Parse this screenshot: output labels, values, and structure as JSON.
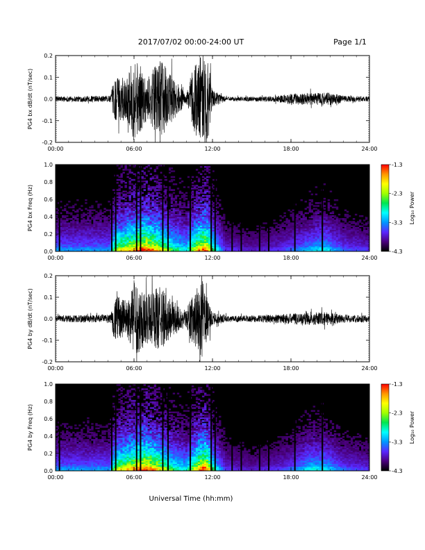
{
  "header": {
    "title": "2017/07/02  00:00-24:00 UT",
    "page": "Page 1/1"
  },
  "xaxis_title": "Universal Time (hh:mm)",
  "colors": {
    "trace": "#000000",
    "spectrogram_background": "#000000",
    "colorbar": [
      "#000000",
      "#4b007d",
      "#5a28ff",
      "#0096ff",
      "#00ffff",
      "#00e650",
      "#a0ff00",
      "#ffff00",
      "#ff9600",
      "#ff0000"
    ]
  },
  "chart_data": [
    {
      "type": "line",
      "ylabel": "PG4 bx dB/dt (nT/sec)",
      "x_ticks": [
        "00:00",
        "06:00",
        "12:00",
        "18:00",
        "24:00"
      ],
      "x_range_hours": [
        0,
        24
      ],
      "y_ticks": [
        "0.2",
        "0.1",
        "0.0",
        "-0.1",
        "-0.2"
      ],
      "ylim": [
        -0.2,
        0.2
      ],
      "grid": false,
      "activity": [
        [
          0,
          0.012
        ],
        [
          4.2,
          0.015
        ],
        [
          4.5,
          0.1
        ],
        [
          5.5,
          0.1
        ],
        [
          6,
          0.2
        ],
        [
          7,
          0.1
        ],
        [
          8,
          0.18
        ],
        [
          9,
          0.1
        ],
        [
          10,
          0.02
        ],
        [
          10.5,
          0.15
        ],
        [
          11.5,
          0.25
        ],
        [
          12,
          0.04
        ],
        [
          13,
          0.01
        ],
        [
          15,
          0.01
        ],
        [
          17,
          0.015
        ],
        [
          18,
          0.025
        ],
        [
          20,
          0.03
        ],
        [
          21,
          0.03
        ],
        [
          22,
          0.015
        ],
        [
          24,
          0.012
        ]
      ]
    },
    {
      "type": "heatmap",
      "ylabel": "PG4 bx Freq (Hz)",
      "x_ticks": [
        "00:00",
        "06:00",
        "12:00",
        "18:00",
        "24:00"
      ],
      "x_range_hours": [
        0,
        24
      ],
      "y_ticks": [
        "1.0",
        "0.8",
        "0.6",
        "0.4",
        "0.2",
        "0.0"
      ],
      "ylim": [
        0,
        1.0
      ],
      "colorbar": {
        "label": "Log₁₀ Power",
        "ticks": [
          "-1.3",
          "-2.3",
          "-3.3",
          "-4.3"
        ],
        "range": [
          -4.3,
          -1.3
        ]
      },
      "vertical_lines_hours": [
        0.3,
        4.3,
        4.6,
        6.2,
        6.5,
        8.2,
        8.6,
        10.3,
        11.9,
        12.2,
        13.5,
        14.2,
        15.6,
        16.3,
        18.3,
        20.4
      ],
      "activity": [
        [
          0,
          0.3
        ],
        [
          4.2,
          0.3
        ],
        [
          4.5,
          0.6
        ],
        [
          6,
          0.8
        ],
        [
          7,
          0.9
        ],
        [
          8,
          0.7
        ],
        [
          9,
          0.5
        ],
        [
          10,
          0.4
        ],
        [
          11,
          0.8
        ],
        [
          11.5,
          0.9
        ],
        [
          12,
          0.5
        ],
        [
          13,
          0.2
        ],
        [
          15,
          0.15
        ],
        [
          17,
          0.2
        ],
        [
          18,
          0.25
        ],
        [
          19.5,
          0.35
        ],
        [
          20.5,
          0.4
        ],
        [
          22,
          0.25
        ],
        [
          24,
          0.2
        ]
      ]
    },
    {
      "type": "line",
      "ylabel": "PG4 by dB/dt (nT/sec)",
      "x_ticks": [
        "00:00",
        "06:00",
        "12:00",
        "18:00",
        "24:00"
      ],
      "x_range_hours": [
        0,
        24
      ],
      "y_ticks": [
        "0.2",
        "0.1",
        "0.0",
        "-0.1",
        "-0.2"
      ],
      "ylim": [
        -0.2,
        0.2
      ],
      "grid": false,
      "activity": [
        [
          0,
          0.015
        ],
        [
          4.2,
          0.02
        ],
        [
          4.5,
          0.1
        ],
        [
          5.5,
          0.09
        ],
        [
          6,
          0.18
        ],
        [
          7,
          0.12
        ],
        [
          8,
          0.15
        ],
        [
          9,
          0.08
        ],
        [
          10,
          0.04
        ],
        [
          10.5,
          0.12
        ],
        [
          11.2,
          0.18
        ],
        [
          12,
          0.03
        ],
        [
          13,
          0.015
        ],
        [
          15,
          0.015
        ],
        [
          17,
          0.02
        ],
        [
          18,
          0.025
        ],
        [
          20,
          0.03
        ],
        [
          21,
          0.03
        ],
        [
          22,
          0.02
        ],
        [
          24,
          0.015
        ]
      ]
    },
    {
      "type": "heatmap",
      "ylabel": "PG4 by Freq (Hz)",
      "x_ticks": [
        "00:00",
        "06:00",
        "12:00",
        "18:00",
        "24:00"
      ],
      "x_range_hours": [
        0,
        24
      ],
      "y_ticks": [
        "1.0",
        "0.8",
        "0.6",
        "0.4",
        "0.2",
        "0.0"
      ],
      "ylim": [
        0,
        1.0
      ],
      "colorbar": {
        "label": "Log₁₀ Power",
        "ticks": [
          "-1.3",
          "-2.3",
          "-3.3",
          "-4.3"
        ],
        "range": [
          -4.3,
          -1.3
        ]
      },
      "vertical_lines_hours": [
        0.3,
        4.3,
        4.6,
        6.2,
        6.5,
        8.2,
        8.6,
        10.3,
        11.9,
        12.2,
        13.5,
        14.2,
        15.6,
        16.3,
        18.3,
        20.4
      ],
      "activity": [
        [
          0,
          0.3
        ],
        [
          4.2,
          0.3
        ],
        [
          4.5,
          0.6
        ],
        [
          6,
          0.8
        ],
        [
          7,
          0.9
        ],
        [
          8,
          0.7
        ],
        [
          9,
          0.5
        ],
        [
          10,
          0.4
        ],
        [
          11,
          0.8
        ],
        [
          11.5,
          0.9
        ],
        [
          12,
          0.5
        ],
        [
          13,
          0.2
        ],
        [
          15,
          0.15
        ],
        [
          17,
          0.2
        ],
        [
          18,
          0.25
        ],
        [
          19.5,
          0.4
        ],
        [
          20.5,
          0.4
        ],
        [
          22,
          0.25
        ],
        [
          24,
          0.2
        ]
      ]
    }
  ]
}
